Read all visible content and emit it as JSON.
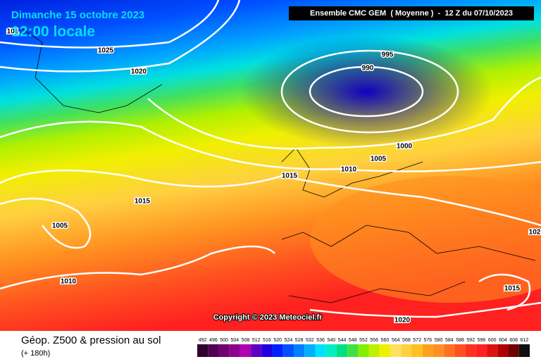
{
  "header": {
    "date": "Dimanche 15 octobre 2023",
    "time": "12:00 locale",
    "model": "Ensemble CMC GEM  ( Moyenne )  -  12 Z du 07/10/2023"
  },
  "map": {
    "isobar_labels": [
      1025,
      1020,
      995,
      990,
      1000,
      1005,
      1010,
      1015,
      1015,
      1005,
      1010,
      1020,
      1015,
      102,
      101
    ],
    "copyright": "Copyright © 2023 Meteociel.fr"
  },
  "footer": {
    "title": "Géop. Z500 & pression au sol",
    "lead": "(+ 180h)"
  },
  "scale": {
    "labels": [
      492,
      496,
      500,
      504,
      508,
      512,
      516,
      520,
      524,
      528,
      532,
      536,
      540,
      544,
      548,
      552,
      556,
      560,
      564,
      568,
      572,
      576,
      580,
      584,
      588,
      592,
      596,
      600,
      604,
      608,
      612
    ],
    "colors": [
      "#300030",
      "#500050",
      "#700070",
      "#900090",
      "#b000b0",
      "#6000c0",
      "#2000e0",
      "#0020ff",
      "#0050ff",
      "#0080ff",
      "#00b0ff",
      "#00e0ff",
      "#00f0c0",
      "#00e080",
      "#40e040",
      "#80f000",
      "#c0f000",
      "#f0f000",
      "#ffe060",
      "#ffd040",
      "#ffc020",
      "#ffa020",
      "#ff9020",
      "#ff7020",
      "#ff5020",
      "#ff3020",
      "#ff2020",
      "#e01010",
      "#b00000",
      "#700000",
      "#101010"
    ]
  }
}
